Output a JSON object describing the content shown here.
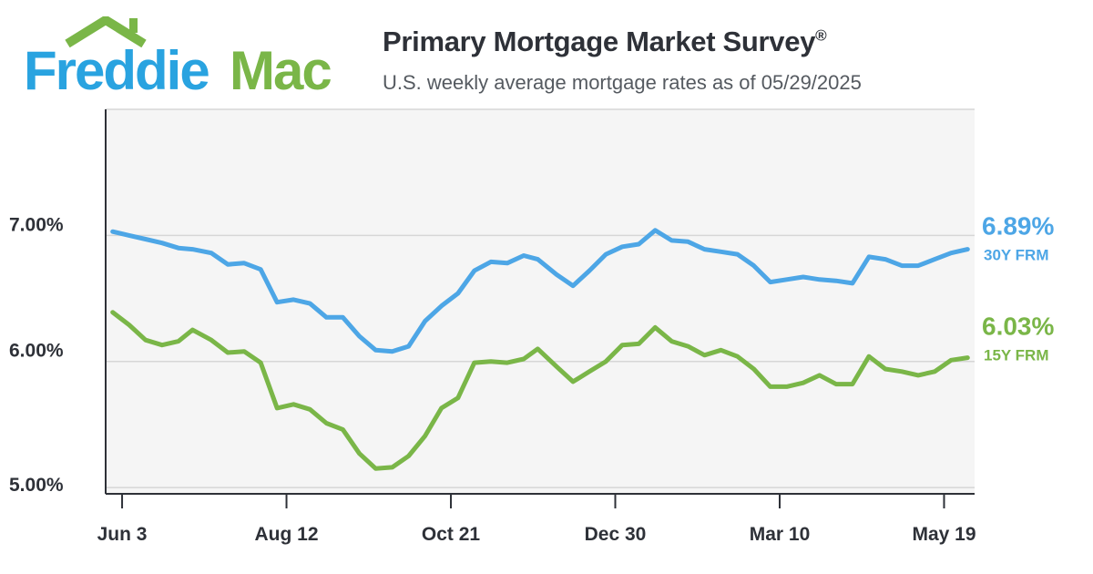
{
  "brand": {
    "name_part1": "Freddie",
    "name_part2": "Mac",
    "blue": "#29a3e0",
    "green": "#7ab648",
    "icon": "house-roof-icon"
  },
  "header": {
    "title": "Primary Mortgage Market Survey",
    "title_mark": "®",
    "subtitle": "U.S. weekly average mortgage rates as of 05/29/2025"
  },
  "chart_data": {
    "type": "line",
    "title": "Primary Mortgage Market Survey®",
    "subtitle": "U.S. weekly average mortgage rates as of 05/29/2025",
    "xlabel": "",
    "ylabel": "",
    "x": [
      "2024-05-30",
      "2024-06-06",
      "2024-06-13",
      "2024-06-20",
      "2024-06-27",
      "2024-07-03",
      "2024-07-11",
      "2024-07-18",
      "2024-07-25",
      "2024-08-01",
      "2024-08-08",
      "2024-08-15",
      "2024-08-22",
      "2024-08-29",
      "2024-09-05",
      "2024-09-12",
      "2024-09-19",
      "2024-09-26",
      "2024-10-03",
      "2024-10-10",
      "2024-10-17",
      "2024-10-24",
      "2024-10-31",
      "2024-11-07",
      "2024-11-14",
      "2024-11-21",
      "2024-11-27",
      "2024-12-05",
      "2024-12-12",
      "2024-12-19",
      "2024-12-26",
      "2025-01-02",
      "2025-01-09",
      "2025-01-16",
      "2025-01-23",
      "2025-01-30",
      "2025-02-06",
      "2025-02-13",
      "2025-02-20",
      "2025-02-27",
      "2025-03-06",
      "2025-03-13",
      "2025-03-20",
      "2025-03-27",
      "2025-04-03",
      "2025-04-10",
      "2025-04-17",
      "2025-04-24",
      "2025-05-01",
      "2025-05-08",
      "2025-05-15",
      "2025-05-22",
      "2025-05-29"
    ],
    "series": [
      {
        "name": "30Y FRM",
        "color": "#4da6e6",
        "values": [
          7.03,
          7.0,
          6.97,
          6.94,
          6.9,
          6.89,
          6.86,
          6.77,
          6.78,
          6.73,
          6.47,
          6.49,
          6.46,
          6.35,
          6.35,
          6.2,
          6.09,
          6.08,
          6.12,
          6.32,
          6.44,
          6.54,
          6.72,
          6.79,
          6.78,
          6.84,
          6.81,
          6.69,
          6.6,
          6.72,
          6.85,
          6.91,
          6.93,
          7.04,
          6.96,
          6.95,
          6.89,
          6.87,
          6.85,
          6.76,
          6.63,
          6.65,
          6.67,
          6.65,
          6.64,
          6.62,
          6.83,
          6.81,
          6.76,
          6.76,
          6.81,
          6.86,
          6.89
        ]
      },
      {
        "name": "15Y FRM",
        "color": "#7ab648",
        "values": [
          6.39,
          6.29,
          6.17,
          6.13,
          6.16,
          6.25,
          6.17,
          6.07,
          6.08,
          5.99,
          5.63,
          5.66,
          5.62,
          5.51,
          5.46,
          5.27,
          5.15,
          5.16,
          5.25,
          5.41,
          5.63,
          5.71,
          5.99,
          6.0,
          5.99,
          6.02,
          6.1,
          5.96,
          5.84,
          5.92,
          6.0,
          6.13,
          6.14,
          6.27,
          6.16,
          6.12,
          6.05,
          6.09,
          6.04,
          5.94,
          5.8,
          5.8,
          5.83,
          5.89,
          5.82,
          5.82,
          6.04,
          5.94,
          5.92,
          5.89,
          5.92,
          6.01,
          6.03
        ]
      }
    ],
    "end_labels": [
      {
        "value": "6.89%",
        "name": "30Y FRM",
        "color": "#4da6e6"
      },
      {
        "value": "6.03%",
        "name": "15Y FRM",
        "color": "#7ab648"
      }
    ],
    "x_ticks": [
      {
        "date": "2024-06-03",
        "label": "Jun 3"
      },
      {
        "date": "2024-08-12",
        "label": "Aug 12"
      },
      {
        "date": "2024-10-21",
        "label": "Oct 21"
      },
      {
        "date": "2024-12-30",
        "label": "Dec 30"
      },
      {
        "date": "2025-03-10",
        "label": "Mar 10"
      },
      {
        "date": "2025-05-19",
        "label": "May 19"
      }
    ],
    "y_ticks": [
      {
        "value": 7.0,
        "label": "7.00%"
      },
      {
        "value": 6.0,
        "label": "6.00%"
      },
      {
        "value": 5.0,
        "label": "5.00%"
      }
    ],
    "xlim": [
      "2024-05-27",
      "2025-06-01"
    ],
    "ylim": [
      4.95,
      8.0
    ],
    "grid": "horizontal",
    "legend": "right end labels",
    "background": "#f5f5f5"
  }
}
